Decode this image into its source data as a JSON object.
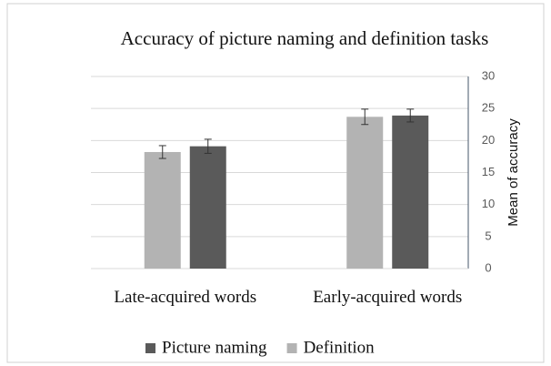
{
  "chart_data": {
    "type": "bar",
    "title": "Accuracy of picture naming and definition tasks",
    "categories": [
      "Late-acquired words",
      "Early-acquired words"
    ],
    "series": [
      {
        "name": "Definition",
        "color": "#b3b3b3",
        "values": [
          18.2,
          23.7
        ],
        "errors": [
          1.0,
          1.2
        ]
      },
      {
        "name": "Picture naming",
        "color": "#5a5a5a",
        "values": [
          19.1,
          23.9
        ],
        "errors": [
          1.1,
          1.0
        ]
      }
    ],
    "y_label": "Mean of accuracy",
    "ylim": [
      0,
      30
    ],
    "yticks": [
      0,
      5,
      10,
      15,
      20,
      25,
      30
    ],
    "grid": true,
    "y_axis_side": "right"
  }
}
